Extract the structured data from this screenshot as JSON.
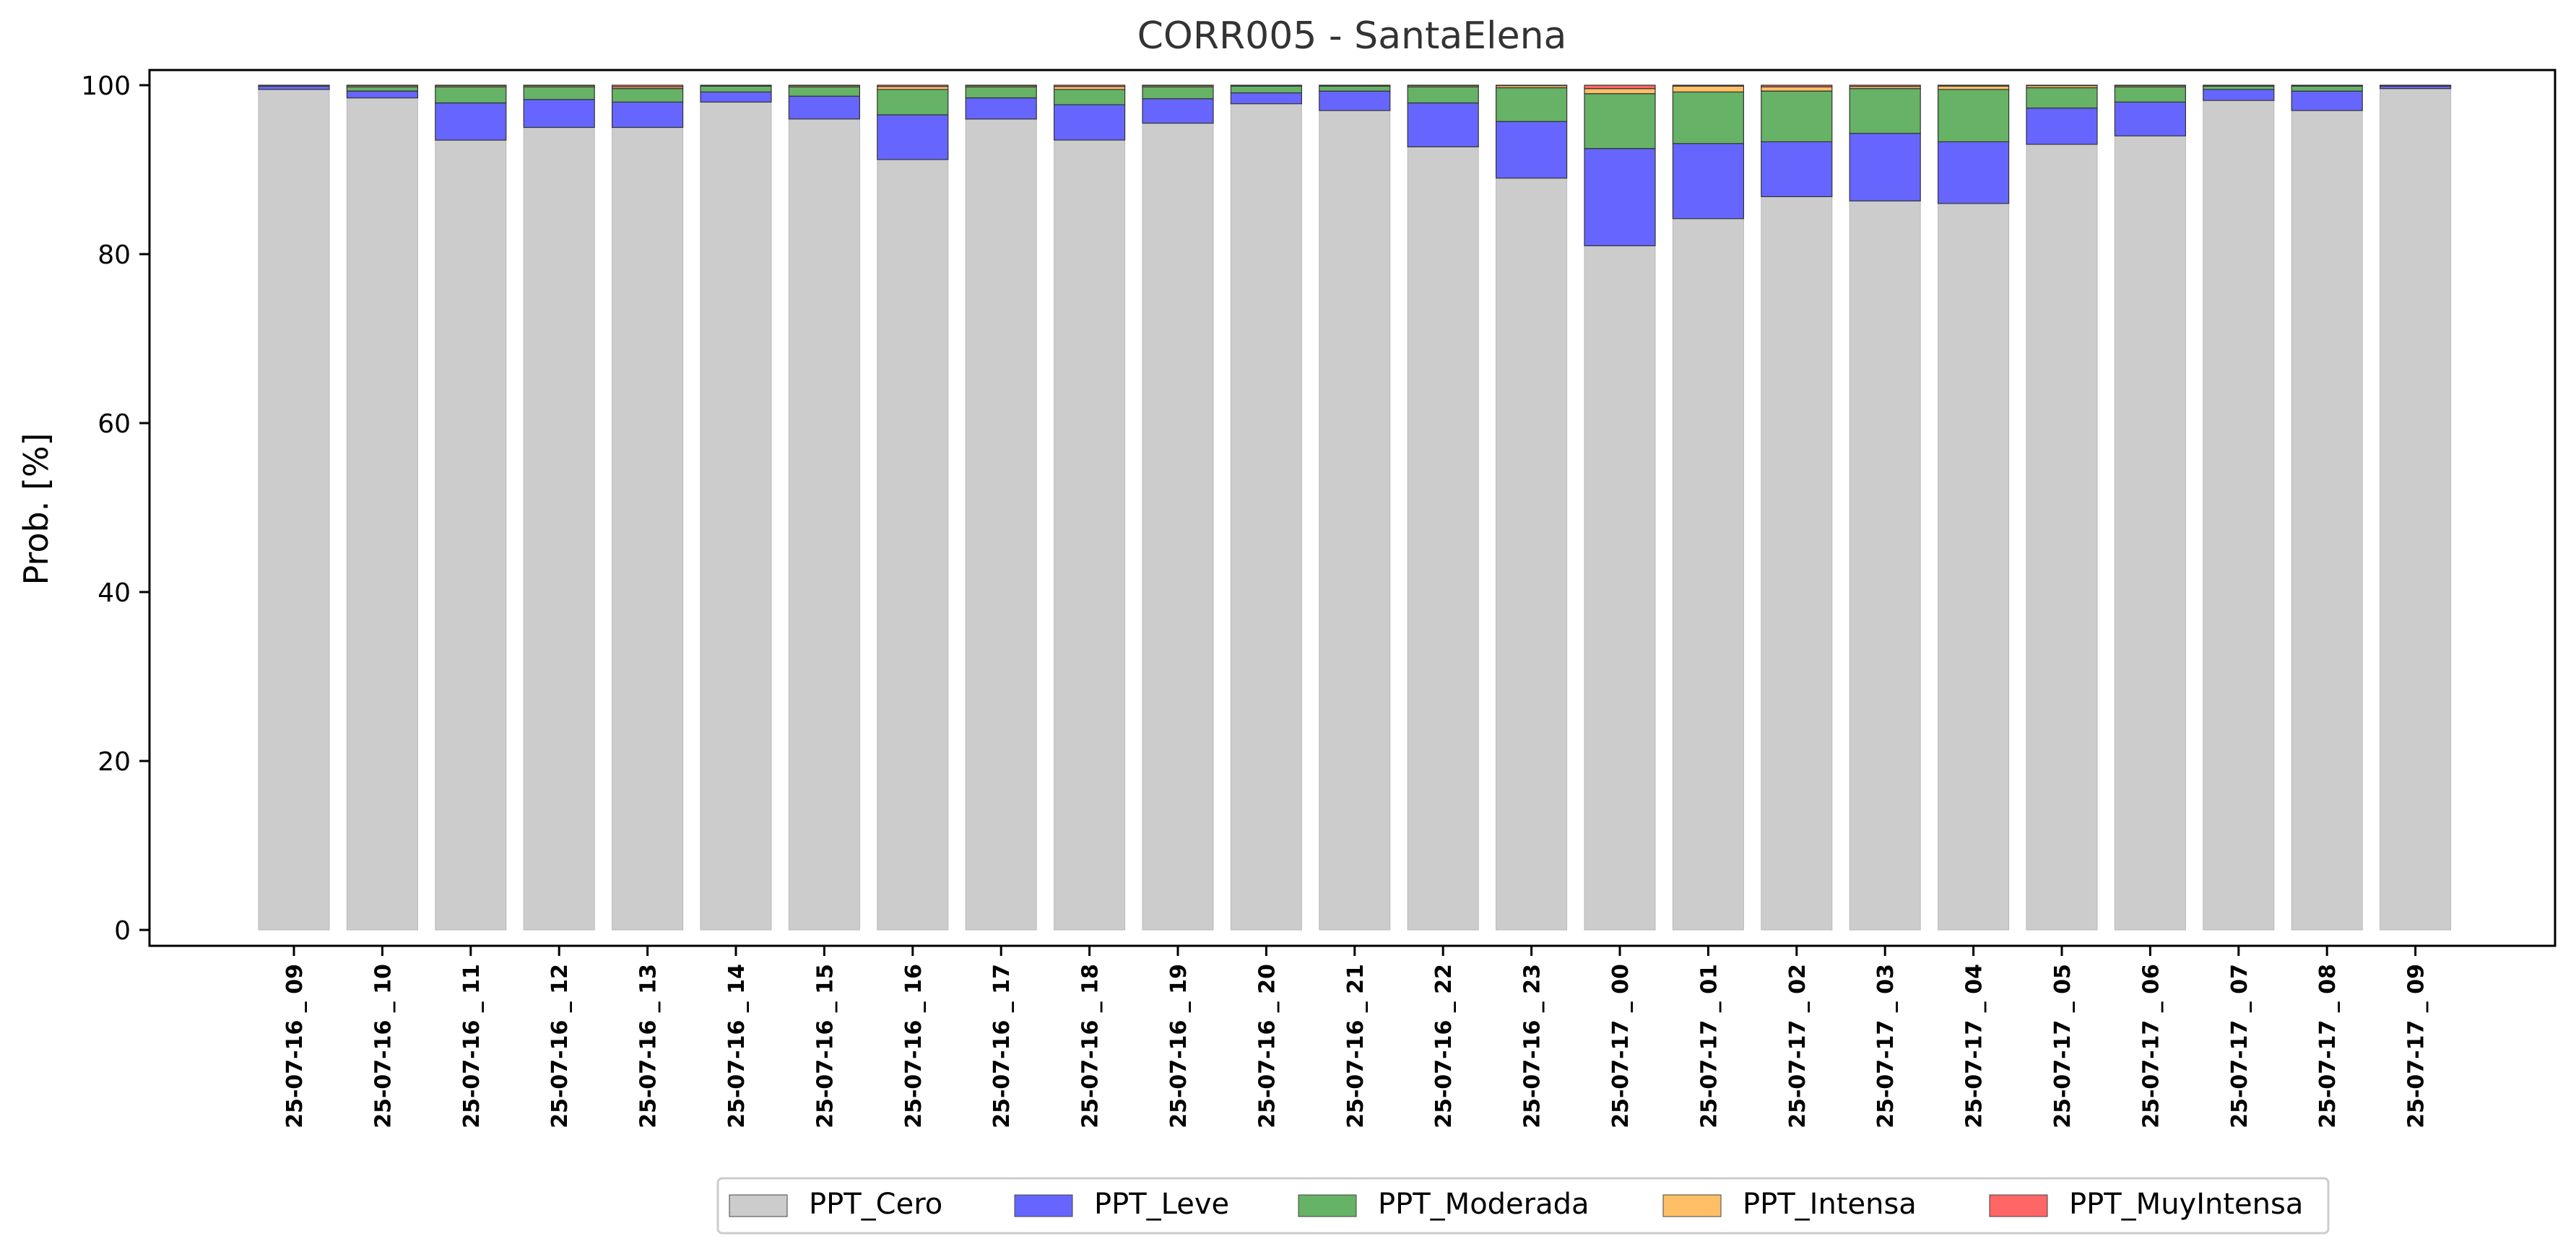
{
  "chart_data": {
    "type": "bar",
    "stacked": true,
    "title": "CORR005 - SantaElena",
    "xlabel": "",
    "ylabel": "Prob. [%]",
    "ylim": [
      0,
      102
    ],
    "yticks": [
      0,
      20,
      40,
      60,
      80,
      100
    ],
    "grid": false,
    "legend_position": "bottom-center",
    "categories": [
      "25-07-16 _ 09",
      "25-07-16 _ 10",
      "25-07-16 _ 11",
      "25-07-16 _ 12",
      "25-07-16 _ 13",
      "25-07-16 _ 14",
      "25-07-16 _ 15",
      "25-07-16 _ 16",
      "25-07-16 _ 17",
      "25-07-16 _ 18",
      "25-07-16 _ 19",
      "25-07-16 _ 20",
      "25-07-16 _ 21",
      "25-07-16 _ 22",
      "25-07-16 _ 23",
      "25-07-17 _ 00",
      "25-07-17 _ 01",
      "25-07-17 _ 02",
      "25-07-17 _ 03",
      "25-07-17 _ 04",
      "25-07-17 _ 05",
      "25-07-17 _ 06",
      "25-07-17 _ 07",
      "25-07-17 _ 08",
      "25-07-17 _ 09"
    ],
    "series": [
      {
        "name": "PPT_Cero",
        "color": "#cccccc",
        "values": [
          99.5,
          98.5,
          93.5,
          95,
          95,
          98,
          96,
          91.2,
          96,
          93.5,
          95.5,
          97.8,
          97,
          92.7,
          89,
          81,
          84.2,
          86.8,
          86.3,
          86,
          93,
          94,
          98.2,
          97,
          99.6
        ]
      },
      {
        "name": "PPT_Leve",
        "color": "#6666ff",
        "values": [
          0.4,
          0.8,
          4.4,
          3.3,
          3,
          1.2,
          2.7,
          5.3,
          2.5,
          4.2,
          2.9,
          1.3,
          2.3,
          5.2,
          6.7,
          11.5,
          8.9,
          6.5,
          8,
          7.3,
          4.3,
          4,
          1.3,
          2.3,
          0.3
        ]
      },
      {
        "name": "PPT_Moderada",
        "color": "#66b266",
        "values": [
          0.1,
          0.5,
          1.9,
          1.5,
          1.6,
          0.7,
          1.1,
          3,
          1.3,
          1.8,
          1.4,
          0.8,
          0.6,
          1.9,
          4,
          6.5,
          6.1,
          6,
          5.3,
          6.2,
          2.4,
          1.8,
          0.4,
          0.6,
          0.1
        ]
      },
      {
        "name": "PPT_Intensa",
        "color": "#ffbf66",
        "values": [
          0,
          0.15,
          0.15,
          0.15,
          0.2,
          0.1,
          0.15,
          0.35,
          0.15,
          0.35,
          0.15,
          0.1,
          0.1,
          0.15,
          0.25,
          0.6,
          0.7,
          0.5,
          0.25,
          0.4,
          0.25,
          0.15,
          0.05,
          0.05,
          0
        ]
      },
      {
        "name": "PPT_MuyIntensa",
        "color": "#ff6666",
        "values": [
          0,
          0.05,
          0.05,
          0.05,
          0.2,
          0,
          0.05,
          0.15,
          0.05,
          0.15,
          0.05,
          0,
          0,
          0.05,
          0.05,
          0.4,
          0.1,
          0.2,
          0.15,
          0.1,
          0.05,
          0.05,
          0.05,
          0.05,
          0
        ]
      }
    ]
  }
}
